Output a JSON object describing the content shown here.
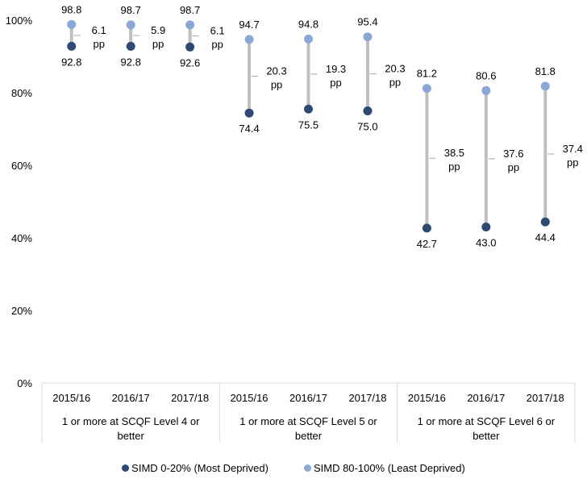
{
  "chart_data": {
    "type": "dumbbell",
    "y_axis": {
      "min": 0,
      "max": 100,
      "ticks": [
        {
          "value": 0,
          "label": "0%"
        },
        {
          "value": 20,
          "label": "20%"
        },
        {
          "value": 40,
          "label": "40%"
        },
        {
          "value": 60,
          "label": "60%"
        },
        {
          "value": 80,
          "label": "80%"
        },
        {
          "value": 100,
          "label": "100%"
        }
      ]
    },
    "grid": false,
    "legend_position": "bottom",
    "series": [
      {
        "name": "SIMD 0-20% (Most Deprived)",
        "color": "#2e4a74"
      },
      {
        "name": "SIMD 80-100% (Least Deprived)",
        "color": "#8aa7d6"
      }
    ],
    "connector_color": "#bfbfbf",
    "groups": [
      {
        "label": "1 or more at SCQF Level 4 or better",
        "points": [
          {
            "year": "2015/16",
            "low": 92.8,
            "high": 98.8,
            "low_label": "92.8",
            "high_label": "98.8",
            "gap_value": "6.1",
            "gap_unit": "pp"
          },
          {
            "year": "2016/17",
            "low": 92.8,
            "high": 98.7,
            "low_label": "92.8",
            "high_label": "98.7",
            "gap_value": "5.9",
            "gap_unit": "pp"
          },
          {
            "year": "2017/18",
            "low": 92.6,
            "high": 98.7,
            "low_label": "92.6",
            "high_label": "98.7",
            "gap_value": "6.1",
            "gap_unit": "pp"
          }
        ]
      },
      {
        "label": "1 or more at SCQF Level 5 or better",
        "points": [
          {
            "year": "2015/16",
            "low": 74.4,
            "high": 94.7,
            "low_label": "74.4",
            "high_label": "94.7",
            "gap_value": "20.3",
            "gap_unit": "pp"
          },
          {
            "year": "2016/17",
            "low": 75.5,
            "high": 94.8,
            "low_label": "75.5",
            "high_label": "94.8",
            "gap_value": "19.3",
            "gap_unit": "pp"
          },
          {
            "year": "2017/18",
            "low": 75.0,
            "high": 95.4,
            "low_label": "75.0",
            "high_label": "95.4",
            "gap_value": "20.3",
            "gap_unit": "pp"
          }
        ]
      },
      {
        "label": "1 or more at SCQF Level 6 or better",
        "points": [
          {
            "year": "2015/16",
            "low": 42.7,
            "high": 81.2,
            "low_label": "42.7",
            "high_label": "81.2",
            "gap_value": "38.5",
            "gap_unit": "pp"
          },
          {
            "year": "2016/17",
            "low": 43.0,
            "high": 80.6,
            "low_label": "43.0",
            "high_label": "80.6",
            "gap_value": "37.6",
            "gap_unit": "pp"
          },
          {
            "year": "2017/18",
            "low": 44.4,
            "high": 81.8,
            "low_label": "44.4",
            "high_label": "81.8",
            "gap_value": "37.4",
            "gap_unit": "pp"
          }
        ]
      }
    ]
  }
}
